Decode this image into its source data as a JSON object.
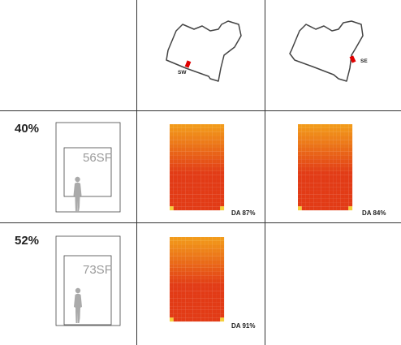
{
  "orientations": [
    {
      "label": "SW"
    },
    {
      "label": "SE"
    }
  ],
  "rows": [
    {
      "ratio": "40%",
      "window_area": "56SF",
      "results": [
        {
          "orientation": "SW",
          "da_label": "DA 87%",
          "da_value": 87
        },
        {
          "orientation": "SE",
          "da_label": "DA 84%",
          "da_value": 84
        }
      ]
    },
    {
      "ratio": "52%",
      "window_area": "73SF",
      "results": [
        {
          "orientation": "SW",
          "da_label": "DA 91%",
          "da_value": 91
        }
      ]
    }
  ],
  "colors": {
    "grid_lines": "#333333",
    "plan_outline": "#444444",
    "window_marker": "#e00000",
    "heatmap_top": "#f29a1a",
    "heatmap_bottom": "#e23b16",
    "heatmap_corner": "#f6cf3a",
    "figure": "#aaaaaa"
  }
}
